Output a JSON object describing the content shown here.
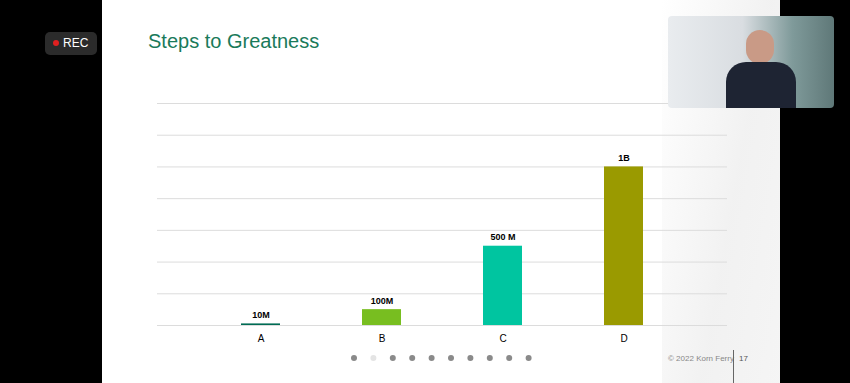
{
  "chart_data": {
    "type": "bar",
    "title": "Steps to Greatness",
    "categories": [
      "A",
      "B",
      "C",
      "D"
    ],
    "values": [
      10000000,
      100000000,
      500000000,
      1000000000
    ],
    "value_labels": [
      "10M",
      "100M",
      "500 M",
      "1B"
    ],
    "colors": [
      "#006b54",
      "#78be20",
      "#00c5a0",
      "#9a9a00"
    ],
    "ylim": [
      0,
      1400000000
    ],
    "yticks": [
      0,
      200000000,
      400000000,
      600000000,
      800000000,
      1000000000,
      1200000000,
      1400000000
    ],
    "grid": true,
    "data_labels": true,
    "tick_labels": "x",
    "annotations": [
      "REC",
      "© 2022 Korn Ferry",
      "17"
    ]
  }
}
